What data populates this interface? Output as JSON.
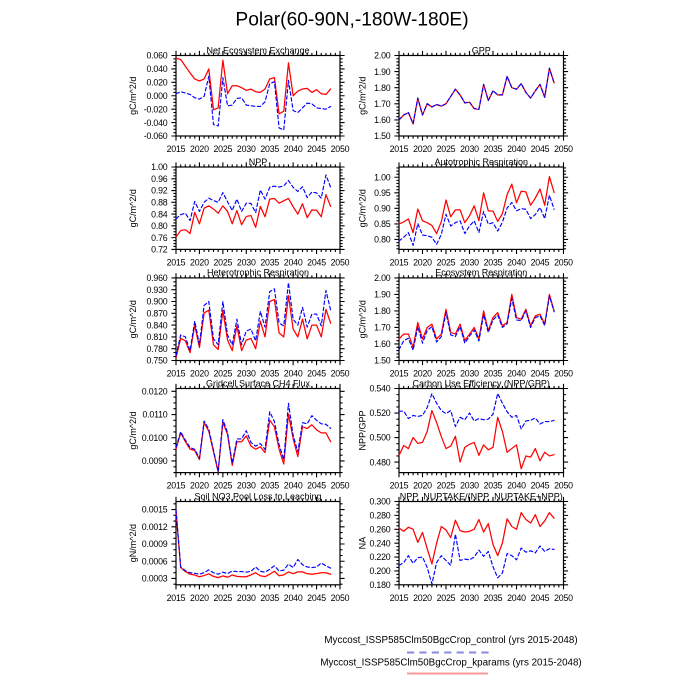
{
  "page_title": "Polar(60-90N,-180W-180E)",
  "legend": {
    "position": "bottom-right",
    "entries": [
      {
        "label": "Myccost_ISSP585Clm50BgcCrop_control (yrs 2015-2048)",
        "sample_color": "#8a8ae0",
        "style": "dashed"
      },
      {
        "label": "Myccost_ISSP585Clm50BgcCrop_kparams (yrs 2015-2048)",
        "sample_color": "#ff9898",
        "style": "solid"
      }
    ]
  },
  "series_style": {
    "control": {
      "color": "#0000ff",
      "dash": "3.5 2.6",
      "width": 1.15
    },
    "kparams": {
      "color": "#ff0000",
      "dash": "",
      "width": 1.25
    }
  },
  "years": [
    2015,
    2016,
    2017,
    2018,
    2019,
    2020,
    2021,
    2022,
    2023,
    2024,
    2025,
    2026,
    2027,
    2028,
    2029,
    2030,
    2031,
    2032,
    2033,
    2034,
    2035,
    2036,
    2037,
    2038,
    2039,
    2040,
    2041,
    2042,
    2043,
    2044,
    2045,
    2046,
    2047,
    2048
  ],
  "chart_data": [
    {
      "type": "line",
      "title": "Net Ecosystem Exchange",
      "ylabel": "gC/m^2/d",
      "xlim": [
        2015,
        2050
      ],
      "xtick_step": 5,
      "xminor_step": 1,
      "ylim": [
        -0.06,
        0.06
      ],
      "yticks": {
        "start": -0.06,
        "end": 0.06,
        "step": 0.02,
        "decimals": 3,
        "minor": 0.005
      },
      "series": [
        {
          "name": "control",
          "values": [
            0.003,
            0.006,
            0.004,
            0.002,
            -0.003,
            -0.005,
            -0.001,
            0.029,
            -0.043,
            -0.045,
            0.027,
            -0.015,
            -0.014,
            -0.004,
            -0.003,
            -0.014,
            -0.015,
            -0.016,
            -0.016,
            -0.009,
            0.018,
            0.021,
            -0.048,
            -0.051,
            0.023,
            -0.022,
            -0.025,
            -0.018,
            -0.011,
            -0.012,
            -0.018,
            -0.019,
            -0.02,
            -0.016
          ]
        },
        {
          "name": "kparams",
          "values": [
            0.056,
            0.054,
            0.044,
            0.034,
            0.025,
            0.022,
            0.025,
            0.04,
            -0.021,
            -0.018,
            0.053,
            0.003,
            0.015,
            0.015,
            0.012,
            0.008,
            0.01,
            0.006,
            0.005,
            0.01,
            0.025,
            0.027,
            -0.027,
            -0.023,
            0.049,
            0.0,
            0.007,
            0.01,
            0.011,
            0.005,
            0.009,
            0.003,
            0.002,
            0.01
          ]
        }
      ]
    },
    {
      "type": "line",
      "title": "GPP",
      "ylabel": "gC/m^2/d",
      "xlim": [
        2015,
        2050
      ],
      "xtick_step": 5,
      "xminor_step": 1,
      "ylim": [
        1.5,
        2.0
      ],
      "yticks": {
        "start": 1.5,
        "end": 2.0,
        "step": 0.1,
        "decimals": 2,
        "minor": 0.02
      },
      "series": [
        {
          "name": "control",
          "values": [
            1.601,
            1.631,
            1.646,
            1.576,
            1.736,
            1.631,
            1.701,
            1.681,
            1.696,
            1.686,
            1.701,
            1.746,
            1.791,
            1.756,
            1.706,
            1.711,
            1.671,
            1.666,
            1.821,
            1.721,
            1.781,
            1.756,
            1.756,
            1.871,
            1.801,
            1.791,
            1.826,
            1.771,
            1.736,
            1.781,
            1.821,
            1.741,
            1.921,
            1.831
          ]
        },
        {
          "name": "kparams",
          "values": [
            1.6,
            1.63,
            1.645,
            1.575,
            1.735,
            1.63,
            1.7,
            1.68,
            1.695,
            1.685,
            1.7,
            1.745,
            1.79,
            1.755,
            1.705,
            1.71,
            1.67,
            1.665,
            1.82,
            1.72,
            1.78,
            1.755,
            1.755,
            1.87,
            1.8,
            1.79,
            1.825,
            1.77,
            1.735,
            1.78,
            1.82,
            1.74,
            1.92,
            1.83
          ]
        }
      ]
    },
    {
      "type": "line",
      "title": "NPP",
      "ylabel": "gC/m^2/d",
      "xlim": [
        2015,
        2050
      ],
      "xtick_step": 5,
      "xminor_step": 1,
      "ylim": [
        0.72,
        1.0
      ],
      "yticks": {
        "start": 0.72,
        "end": 1.0,
        "step": 0.04,
        "decimals": 2,
        "minor": 0.01
      },
      "series": [
        {
          "name": "control",
          "values": [
            0.824,
            0.838,
            0.843,
            0.818,
            0.883,
            0.849,
            0.88,
            0.894,
            0.886,
            0.88,
            0.913,
            0.882,
            0.852,
            0.891,
            0.849,
            0.877,
            0.876,
            0.845,
            0.922,
            0.891,
            0.931,
            0.935,
            0.932,
            0.936,
            0.954,
            0.931,
            0.917,
            0.933,
            0.896,
            0.915,
            0.912,
            0.894,
            0.973,
            0.931
          ]
        },
        {
          "name": "kparams",
          "values": [
            0.762,
            0.784,
            0.787,
            0.774,
            0.846,
            0.807,
            0.86,
            0.868,
            0.857,
            0.843,
            0.868,
            0.849,
            0.807,
            0.852,
            0.804,
            0.832,
            0.835,
            0.795,
            0.866,
            0.831,
            0.891,
            0.893,
            0.877,
            0.885,
            0.893,
            0.865,
            0.84,
            0.875,
            0.828,
            0.854,
            0.853,
            0.831,
            0.906,
            0.866
          ]
        }
      ]
    },
    {
      "type": "line",
      "title": "Autotrophic Respiration",
      "ylabel": "gC/m^2/d",
      "xlim": [
        2015,
        2050
      ],
      "xtick_step": 5,
      "xminor_step": 1,
      "ylim": [
        0.768,
        1.033
      ],
      "yticks": {
        "start": 0.8,
        "end": 1.0,
        "step": 0.05,
        "decimals": 2,
        "minor": 0.01
      },
      "series": [
        {
          "name": "control",
          "values": [
            0.795,
            0.807,
            0.822,
            0.781,
            0.851,
            0.814,
            0.812,
            0.807,
            0.784,
            0.816,
            0.881,
            0.843,
            0.854,
            0.86,
            0.819,
            0.843,
            0.86,
            0.822,
            0.89,
            0.849,
            0.854,
            0.827,
            0.855,
            0.901,
            0.919,
            0.892,
            0.899,
            0.897,
            0.867,
            0.88,
            0.903,
            0.867,
            0.942,
            0.897
          ]
        },
        {
          "name": "kparams",
          "values": [
            0.85,
            0.856,
            0.866,
            0.822,
            0.898,
            0.86,
            0.854,
            0.845,
            0.819,
            0.857,
            0.927,
            0.873,
            0.895,
            0.895,
            0.854,
            0.876,
            0.908,
            0.86,
            0.95,
            0.892,
            0.891,
            0.858,
            0.883,
            0.944,
            0.978,
            0.918,
            0.955,
            0.953,
            0.91,
            0.933,
            0.962,
            0.91,
            1.002,
            0.951
          ]
        }
      ]
    },
    {
      "type": "line",
      "title": "Heterotrophic Respiration",
      "ylabel": "gC/m^2/d",
      "xlim": [
        2015,
        2050
      ],
      "xtick_step": 5,
      "xminor_step": 1,
      "ylim": [
        0.75,
        0.96
      ],
      "yticks": {
        "start": 0.75,
        "end": 0.96,
        "step": 0.03,
        "decimals": 3,
        "minor": 0.01
      },
      "series": [
        {
          "name": "control",
          "values": [
            0.762,
            0.815,
            0.81,
            0.775,
            0.85,
            0.79,
            0.89,
            0.9,
            0.805,
            0.79,
            0.9,
            0.815,
            0.79,
            0.855,
            0.79,
            0.825,
            0.83,
            0.8,
            0.875,
            0.835,
            0.925,
            0.932,
            0.845,
            0.838,
            0.948,
            0.855,
            0.84,
            0.885,
            0.835,
            0.868,
            0.868,
            0.838,
            0.928,
            0.878
          ]
        },
        {
          "name": "kparams",
          "values": [
            0.757,
            0.806,
            0.8,
            0.77,
            0.84,
            0.783,
            0.871,
            0.878,
            0.79,
            0.778,
            0.877,
            0.802,
            0.775,
            0.838,
            0.775,
            0.802,
            0.806,
            0.78,
            0.85,
            0.81,
            0.9,
            0.905,
            0.82,
            0.81,
            0.915,
            0.83,
            0.81,
            0.855,
            0.805,
            0.84,
            0.84,
            0.81,
            0.88,
            0.845
          ]
        }
      ]
    },
    {
      "type": "line",
      "title": "Ecosystem Respiration",
      "ylabel": "gC/m^2/d",
      "xlim": [
        2015,
        2050
      ],
      "xtick_step": 5,
      "xminor_step": 1,
      "ylim": [
        1.5,
        2.0
      ],
      "yticks": {
        "start": 1.5,
        "end": 2.0,
        "step": 0.1,
        "decimals": 2,
        "minor": 0.02
      },
      "series": [
        {
          "name": "control",
          "values": [
            1.565,
            1.62,
            1.635,
            1.562,
            1.705,
            1.605,
            1.682,
            1.705,
            1.612,
            1.645,
            1.79,
            1.655,
            1.645,
            1.705,
            1.605,
            1.648,
            1.685,
            1.618,
            1.778,
            1.67,
            1.745,
            1.775,
            1.7,
            1.722,
            1.875,
            1.745,
            1.742,
            1.8,
            1.7,
            1.76,
            1.77,
            1.712,
            1.89,
            1.795
          ]
        },
        {
          "name": "kparams",
          "values": [
            1.63,
            1.66,
            1.66,
            1.58,
            1.73,
            1.63,
            1.7,
            1.72,
            1.63,
            1.66,
            1.81,
            1.67,
            1.66,
            1.72,
            1.62,
            1.66,
            1.7,
            1.63,
            1.8,
            1.68,
            1.76,
            1.79,
            1.71,
            1.73,
            1.9,
            1.76,
            1.75,
            1.81,
            1.71,
            1.77,
            1.78,
            1.72,
            1.9,
            1.8
          ]
        }
      ]
    },
    {
      "type": "line",
      "title": "Gridcell Surface CH4 Flux",
      "ylabel": "gC/m^2/d",
      "xlim": [
        2015,
        2050
      ],
      "xtick_step": 5,
      "xminor_step": 1,
      "ylim": [
        0.0085,
        0.01212
      ],
      "yticks": {
        "start": 0.009,
        "end": 0.012,
        "step": 0.001,
        "decimals": 4,
        "minor": 0.00025
      },
      "series": [
        {
          "name": "control",
          "values": [
            0.00958,
            0.01026,
            0.0099,
            0.00958,
            0.0095,
            0.00912,
            0.01072,
            0.01036,
            0.00946,
            0.00855,
            0.01078,
            0.01022,
            0.0089,
            0.00995,
            0.00995,
            0.0103,
            0.0098,
            0.00964,
            0.00975,
            0.0095,
            0.01112,
            0.0107,
            0.0097,
            0.00905,
            0.01148,
            0.0101,
            0.0094,
            0.01065,
            0.0106,
            0.01095,
            0.01075,
            0.0106,
            0.01058,
            0.0104
          ]
        },
        {
          "name": "kparams",
          "values": [
            0.00951,
            0.01021,
            0.00983,
            0.00951,
            0.00945,
            0.00906,
            0.01066,
            0.01028,
            0.0094,
            0.00853,
            0.01066,
            0.01015,
            0.00881,
            0.00983,
            0.00983,
            0.01008,
            0.00964,
            0.00951,
            0.00961,
            0.00936,
            0.01076,
            0.01047,
            0.00951,
            0.00887,
            0.01102,
            0.00996,
            0.00919,
            0.01047,
            0.0104,
            0.01056,
            0.01034,
            0.01021,
            0.01021,
            0.00983
          ]
        }
      ]
    },
    {
      "type": "line",
      "title": "Carbon Use Efficiency (NPP/GPP)",
      "ylabel": "NPP/GPP",
      "xlim": [
        2015,
        2050
      ],
      "xtick_step": 5,
      "xminor_step": 1,
      "ylim": [
        0.4714,
        0.54
      ],
      "yticks": {
        "start": 0.48,
        "end": 0.54,
        "step": 0.02,
        "decimals": 3,
        "minor": 0.005
      },
      "series": [
        {
          "name": "control",
          "values": [
            0.5215,
            0.5215,
            0.5155,
            0.518,
            0.5172,
            0.518,
            0.5245,
            0.5358,
            0.528,
            0.522,
            0.5195,
            0.522,
            0.509,
            0.5165,
            0.5145,
            0.52,
            0.5135,
            0.5155,
            0.5145,
            0.515,
            0.519,
            0.536,
            0.528,
            0.521,
            0.5165,
            0.518,
            0.507,
            0.5135,
            0.514,
            0.516,
            0.511,
            0.513,
            0.513,
            0.514
          ]
        },
        {
          "name": "kparams",
          "values": [
            0.4854,
            0.4935,
            0.491,
            0.5,
            0.4952,
            0.496,
            0.505,
            0.522,
            0.5123,
            0.5008,
            0.491,
            0.493,
            0.501,
            0.48,
            0.492,
            0.4945,
            0.496,
            0.4855,
            0.494,
            0.49,
            0.492,
            0.5165,
            0.505,
            0.488,
            0.491,
            0.494,
            0.4745,
            0.485,
            0.484,
            0.491,
            0.481,
            0.488,
            0.485,
            0.486
          ]
        }
      ]
    },
    {
      "type": "line",
      "title": "Soil NO3 Pool Loss to Leaching",
      "ylabel": "gN/m^2/d",
      "xlim": [
        2015,
        2050
      ],
      "xtick_step": 5,
      "xminor_step": 1,
      "ylim": [
        0.00019,
        0.00164
      ],
      "yticks": {
        "start": 0.0003,
        "end": 0.0015,
        "step": 0.0003,
        "decimals": 4,
        "minor": 0.0001
      },
      "series": [
        {
          "name": "control",
          "values": [
            0.0015,
            0.0005,
            0.000435,
            0.0004,
            0.00039,
            0.000375,
            0.0004,
            0.00045,
            0.0004,
            0.000375,
            0.00041,
            0.000385,
            0.00043,
            0.00042,
            0.00042,
            0.00041,
            0.000425,
            0.0005,
            0.000425,
            0.00041,
            0.00046,
            0.00052,
            0.00043,
            0.000445,
            0.00055,
            0.00049,
            0.00063,
            0.00054,
            0.0005,
            0.00049,
            0.0005,
            0.00057,
            0.00052,
            0.00048
          ]
        },
        {
          "name": "kparams",
          "values": [
            0.00147,
            0.00049,
            0.00042,
            0.000375,
            0.00036,
            0.00033,
            0.000351,
            0.000381,
            0.000336,
            0.000315,
            0.000345,
            0.000321,
            0.00036,
            0.000336,
            0.00033,
            0.00033,
            0.000363,
            0.0004,
            0.000347,
            0.000332,
            0.000374,
            0.000426,
            0.000347,
            0.000363,
            0.000415,
            0.000384,
            0.000415,
            0.000415,
            0.000384,
            0.000374,
            0.000384,
            0.0004,
            0.0004,
            0.000374
          ]
        }
      ]
    },
    {
      "type": "line",
      "title": "NPP_NUPTAKE/(NPP_NUPTAKE+NPP)",
      "ylabel": "NA",
      "xlim": [
        2015,
        2050
      ],
      "xtick_step": 5,
      "xminor_step": 1,
      "ylim": [
        0.18,
        0.3
      ],
      "yticks": {
        "start": 0.18,
        "end": 0.3,
        "step": 0.02,
        "decimals": 3,
        "minor": 0.005
      },
      "series": [
        {
          "name": "control",
          "values": [
            0.208,
            0.212,
            0.222,
            0.211,
            0.219,
            0.22,
            0.205,
            0.181,
            0.212,
            0.222,
            0.215,
            0.208,
            0.253,
            0.215,
            0.217,
            0.216,
            0.22,
            0.23,
            0.221,
            0.228,
            0.206,
            0.19,
            0.197,
            0.225,
            0.222,
            0.216,
            0.233,
            0.227,
            0.229,
            0.226,
            0.236,
            0.228,
            0.232,
            0.231
          ]
        },
        {
          "name": "kparams",
          "values": [
            0.2616,
            0.2572,
            0.2629,
            0.2599,
            0.2411,
            0.2555,
            0.232,
            0.21,
            0.24,
            0.264,
            0.259,
            0.248,
            0.273,
            0.258,
            0.256,
            0.257,
            0.26,
            0.274,
            0.256,
            0.268,
            0.238,
            0.222,
            0.24,
            0.275,
            0.264,
            0.26,
            0.284,
            0.274,
            0.269,
            0.281,
            0.264,
            0.272,
            0.284,
            0.276
          ]
        }
      ]
    }
  ]
}
